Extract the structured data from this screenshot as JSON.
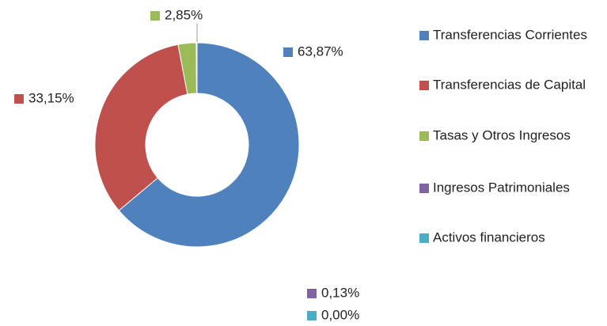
{
  "chart_data": {
    "type": "donut",
    "categories": [
      "Transferencias Corrientes",
      "Transferencias de Capital",
      "Tasas y Otros Ingresos",
      "Ingresos Patrimoniales",
      "Activos financieros"
    ],
    "values": [
      63.87,
      33.15,
      2.85,
      0.13,
      0.0
    ],
    "value_labels": [
      "63,87%",
      "33,15%",
      "2,85%",
      "0,13%",
      "0,00%"
    ],
    "colors": [
      "#4f81bd",
      "#c0504d",
      "#9bbb59",
      "#8064a2",
      "#4bacc6"
    ],
    "legend": "right"
  }
}
